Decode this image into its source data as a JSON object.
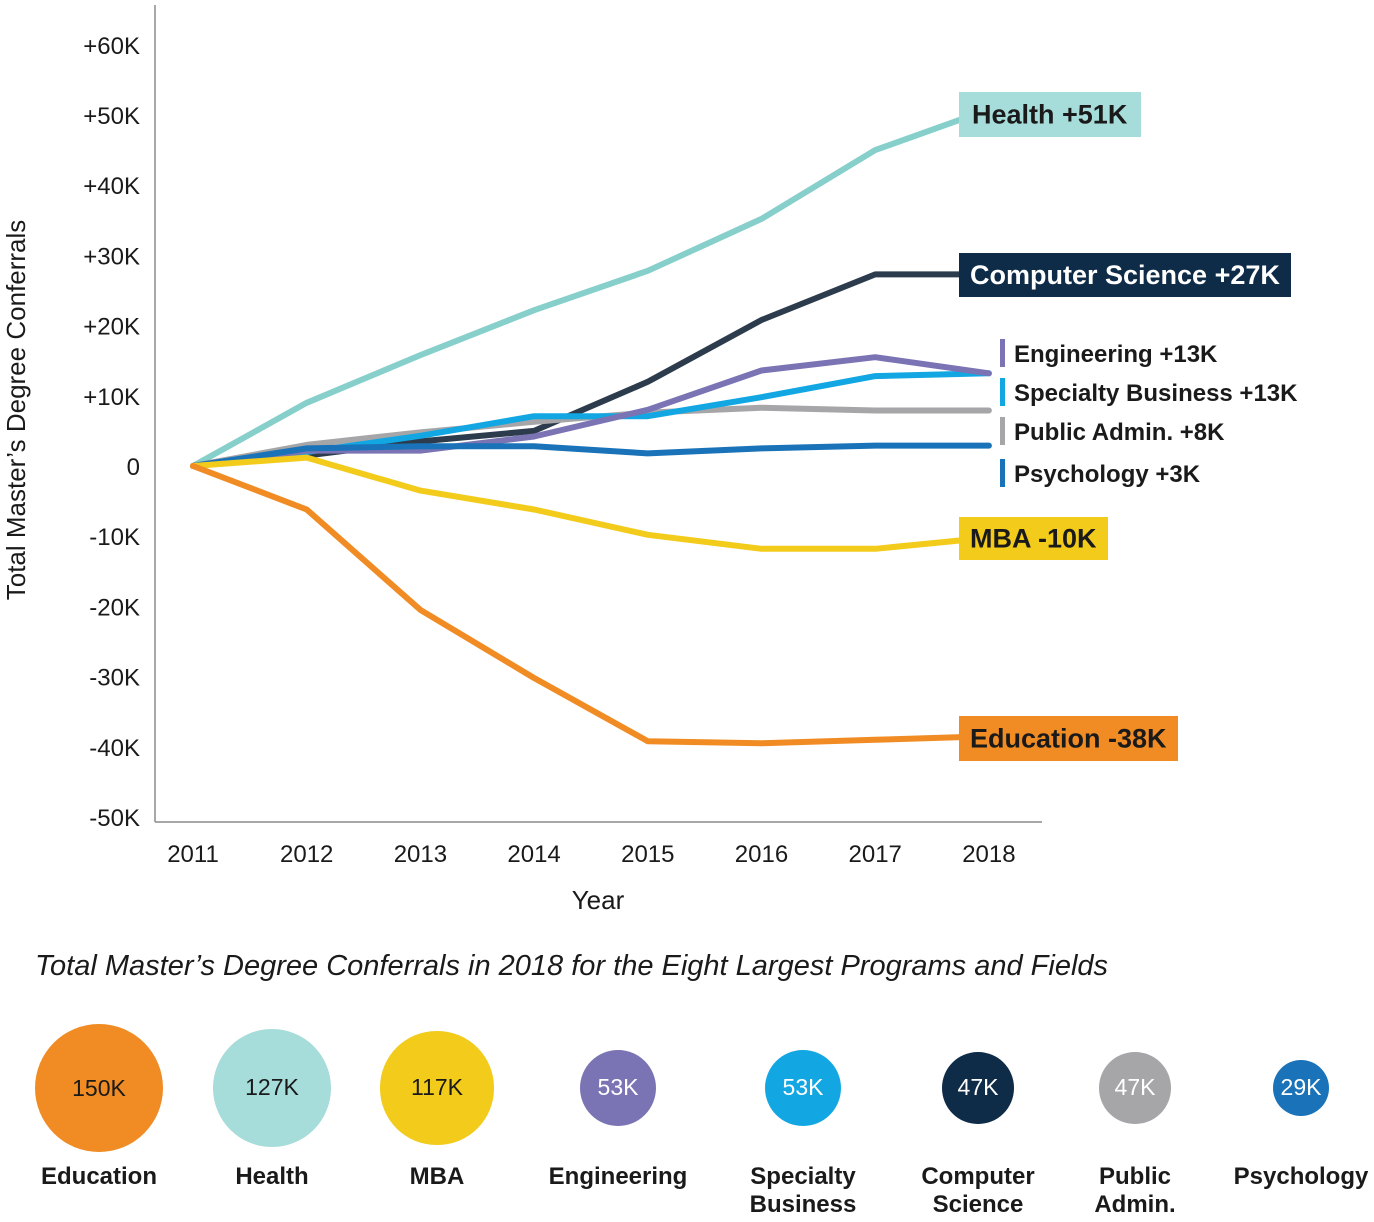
{
  "chart_data": [
    {
      "type": "line",
      "xlabel": "Year",
      "ylabel": "Total Master’s Degree Conferrals",
      "x": [
        2011,
        2012,
        2013,
        2014,
        2015,
        2016,
        2017,
        2018
      ],
      "ylim": [
        -50000,
        60000
      ],
      "yticks": [
        {
          "value": 60000,
          "label": "+60K"
        },
        {
          "value": 50000,
          "label": "+50K"
        },
        {
          "value": 40000,
          "label": "+40K"
        },
        {
          "value": 30000,
          "label": "+30K"
        },
        {
          "value": 20000,
          "label": "+20K"
        },
        {
          "value": 10000,
          "label": "+10K"
        },
        {
          "value": 0,
          "label": "0"
        },
        {
          "value": -10000,
          "label": "-10K"
        },
        {
          "value": -20000,
          "label": "-20K"
        },
        {
          "value": -30000,
          "label": "-30K"
        },
        {
          "value": -40000,
          "label": "-40K"
        },
        {
          "value": -50000,
          "label": "-50K"
        }
      ],
      "grid": false,
      "series": [
        {
          "key": "health",
          "name": "Health",
          "change": "+51K",
          "color": "#86cfcb",
          "label_style": "box",
          "label_text_color": "#1a1a1a",
          "label_bg": "#a6dcd9",
          "values": [
            0,
            9000,
            15800,
            22200,
            27800,
            35200,
            45000,
            50800
          ]
        },
        {
          "key": "computer_science",
          "name": "Computer Science",
          "change": "+27K",
          "color": "#2c3c4d",
          "label_style": "box",
          "label_text_color": "#ffffff",
          "label_bg": "#0e2b47",
          "values": [
            0,
            1500,
            3500,
            5000,
            12000,
            20800,
            27300,
            27300
          ]
        },
        {
          "key": "public_admin",
          "name": "Public Admin.",
          "change": "+8K",
          "color": "#a6a6a8",
          "label_style": "tick",
          "values": [
            0,
            3000,
            4800,
            6300,
            7600,
            8300,
            7900,
            7900
          ]
        },
        {
          "key": "specialty_business",
          "name": "Specialty Business",
          "change": "+13K",
          "color": "#12a7e2",
          "label_style": "tick",
          "values": [
            0,
            2000,
            4300,
            7100,
            7100,
            9800,
            12800,
            13200
          ]
        },
        {
          "key": "engineering",
          "name": "Engineering",
          "change": "+13K",
          "color": "#7a74b4",
          "label_style": "tick",
          "values": [
            0,
            2200,
            2200,
            4200,
            8000,
            13600,
            15500,
            13200
          ]
        },
        {
          "key": "psychology",
          "name": "Psychology",
          "change": "+3K",
          "color": "#1a73b8",
          "label_style": "tick",
          "values": [
            0,
            2500,
            2800,
            2800,
            1800,
            2500,
            2900,
            2900
          ]
        },
        {
          "key": "mba",
          "name": "MBA",
          "change": "-10K",
          "color": "#f2cb1b",
          "label_style": "box",
          "label_text_color": "#1a1a1a",
          "label_bg": "#f2cb1b",
          "values": [
            0,
            1200,
            -3500,
            -6200,
            -9800,
            -11800,
            -11800,
            -10200
          ]
        },
        {
          "key": "education",
          "name": "Education",
          "change": "-38K",
          "color": "#f08c23",
          "label_style": "box",
          "label_text_color": "#1a1a1a",
          "label_bg": "#f08c23",
          "values": [
            0,
            -6200,
            -20500,
            -30200,
            -39200,
            -39500,
            -39000,
            -38500
          ]
        }
      ]
    },
    {
      "type": "bubble",
      "title": "Total Master’s Degree Conferrals in 2018 for the Eight Largest Programs and Fields",
      "items": [
        {
          "name": "Education",
          "value": 150000,
          "label": "150K",
          "color": "#f08c23",
          "text_color": "#1a1a1a"
        },
        {
          "name": "Health",
          "value": 127000,
          "label": "127K",
          "color": "#a6dcd9",
          "text_color": "#1a1a1a"
        },
        {
          "name": "MBA",
          "value": 117000,
          "label": "117K",
          "color": "#f2cb1b",
          "text_color": "#1a1a1a"
        },
        {
          "name": "Engineering",
          "value": 53000,
          "label": "53K",
          "color": "#7a74b4",
          "text_color": "#ffffff"
        },
        {
          "name": "Specialty Business",
          "value": 53000,
          "label": "53K",
          "color": "#12a7e2",
          "text_color": "#ffffff"
        },
        {
          "name": "Computer Science",
          "value": 47000,
          "label": "47K",
          "color": "#0e2b47",
          "text_color": "#ffffff"
        },
        {
          "name": "Public Admin.",
          "value": 47000,
          "label": "47K",
          "color": "#a6a6a8",
          "text_color": "#ffffff"
        },
        {
          "name": "Psychology",
          "value": 29000,
          "label": "29K",
          "color": "#1a73b8",
          "text_color": "#ffffff"
        }
      ]
    }
  ]
}
